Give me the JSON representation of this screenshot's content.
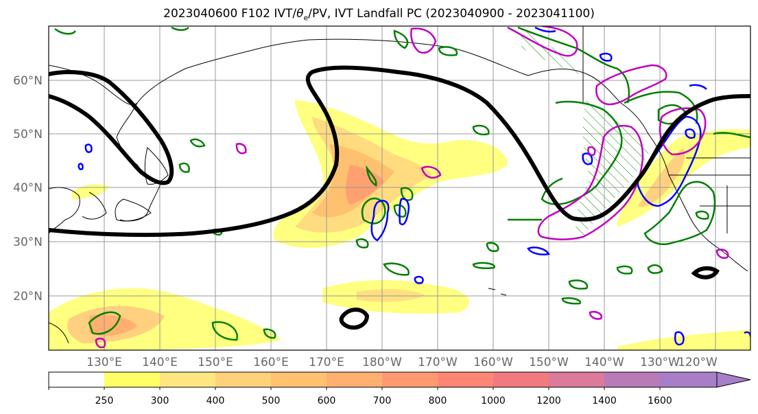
{
  "title": "2023040600 F102 IVT/θe/PV, IVT Landfall PC (2023040900 - 2023041100)",
  "title_parts": {
    "pre": "2023040600 F102 IVT/",
    "theta": "θ",
    "sub": "e",
    "post": "/PV, IVT Landfall PC (2023040900 - 2023041100)"
  },
  "lat_labels": [
    "60°N",
    "50°N",
    "40°N",
    "30°N",
    "20°N"
  ],
  "lon_labels": [
    "130°E",
    "140°E",
    "150°E",
    "160°E",
    "170°E",
    "180°W",
    "170°W",
    "160°W",
    "150°W",
    "140°W",
    "130°W",
    "120°W"
  ],
  "colorbar": {
    "ticks": [
      "250",
      "300",
      "400",
      "500",
      "600",
      "700",
      "800",
      "1000",
      "1200",
      "1400",
      "1600"
    ],
    "colors": [
      "#ffff66",
      "#ffe680",
      "#ffd27a",
      "#ffc270",
      "#ffb070",
      "#ff9a70",
      "#ff8575",
      "#f27980",
      "#db7a9a",
      "#b87ab8",
      "#a87ec8"
    ]
  },
  "colors": {
    "ivt_low": "#ffff80",
    "theta_contour": "#007f00",
    "pv_contour": "#0000ff",
    "landfall_pc": "#bf00bf",
    "height_contour": "#000000"
  }
}
